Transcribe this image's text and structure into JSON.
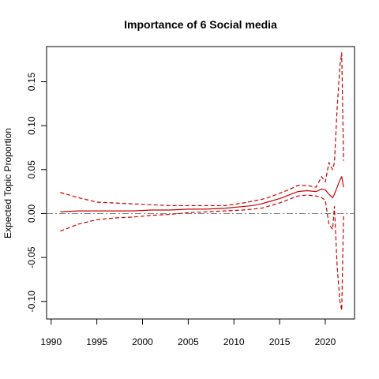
{
  "chart_data": {
    "type": "line",
    "title": "Importance of 6 Social media",
    "xlabel": "",
    "ylabel": "Expected Topic Proportion",
    "xlim": [
      1989.5,
      2023.2
    ],
    "ylim": [
      -0.12,
      0.19
    ],
    "x_ticks": [
      1990,
      1995,
      2000,
      2005,
      2010,
      2015,
      2020
    ],
    "y_ticks": [
      -0.1,
      -0.05,
      0.0,
      0.05,
      0.1,
      0.15
    ],
    "y_tick_labels": [
      "-0.10",
      "-0.05",
      "0.00",
      "0.05",
      "0.10",
      "0.15"
    ],
    "grid": false,
    "reference_line": {
      "y": 0.0,
      "color": "#808080",
      "style": "dash-dot"
    },
    "colors": {
      "series": "#cc0000",
      "reference": "#808080",
      "axis": "#000000"
    },
    "x": [
      1991,
      1993,
      1995,
      1997,
      1999,
      2001,
      2003,
      2005,
      2007,
      2009,
      2011,
      2012,
      2013,
      2014,
      2015,
      2016,
      2017,
      2018,
      2019,
      2019.6,
      2020,
      2020.4,
      2020.8,
      2021,
      2021.3,
      2021.6,
      2021.8,
      2022
    ],
    "series": [
      {
        "role": "estimate",
        "style": "solid",
        "values": [
          0.002,
          0.003,
          0.003,
          0.003,
          0.003,
          0.004,
          0.004,
          0.005,
          0.005,
          0.006,
          0.008,
          0.009,
          0.011,
          0.014,
          0.017,
          0.021,
          0.025,
          0.026,
          0.025,
          0.028,
          0.027,
          0.022,
          0.018,
          0.022,
          0.03,
          0.038,
          0.042,
          0.03
        ]
      },
      {
        "role": "upper",
        "style": "dashed",
        "values": [
          0.024,
          0.018,
          0.013,
          0.012,
          0.011,
          0.01,
          0.009,
          0.009,
          0.009,
          0.009,
          0.012,
          0.014,
          0.016,
          0.019,
          0.023,
          0.027,
          0.032,
          0.032,
          0.03,
          0.042,
          0.036,
          0.058,
          0.05,
          0.058,
          0.12,
          0.168,
          0.183,
          0.06
        ]
      },
      {
        "role": "lower",
        "style": "dashed",
        "values": [
          -0.02,
          -0.012,
          -0.007,
          -0.005,
          -0.004,
          -0.002,
          -0.001,
          0.001,
          0.002,
          0.003,
          0.004,
          0.005,
          0.006,
          0.009,
          0.012,
          0.016,
          0.02,
          0.021,
          0.02,
          0.018,
          0.015,
          -0.012,
          -0.018,
          0.008,
          -0.06,
          -0.1,
          -0.11,
          0.0
        ]
      }
    ]
  }
}
